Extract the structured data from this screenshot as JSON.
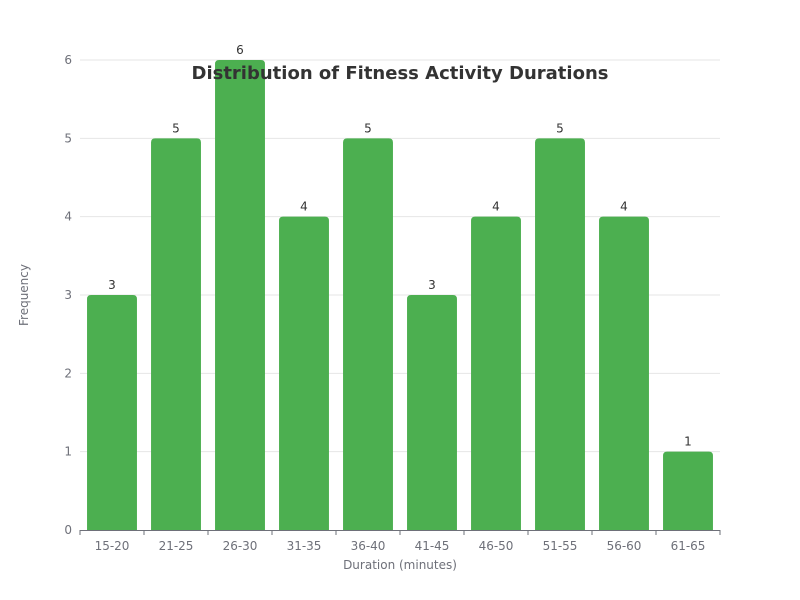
{
  "chart_data": {
    "type": "bar",
    "title": "Distribution of Fitness Activity Durations",
    "xlabel": "Duration (minutes)",
    "ylabel": "Frequency",
    "categories": [
      "15-20",
      "21-25",
      "26-30",
      "31-35",
      "36-40",
      "41-45",
      "46-50",
      "51-55",
      "56-60",
      "61-65"
    ],
    "values": [
      3,
      5,
      6,
      4,
      5,
      3,
      4,
      5,
      4,
      1
    ],
    "ylim": [
      0,
      6
    ],
    "yticks": [
      0,
      1,
      2,
      3,
      4,
      5,
      6
    ],
    "grid": true,
    "bar_color": "#4caf50",
    "legend": "none"
  }
}
